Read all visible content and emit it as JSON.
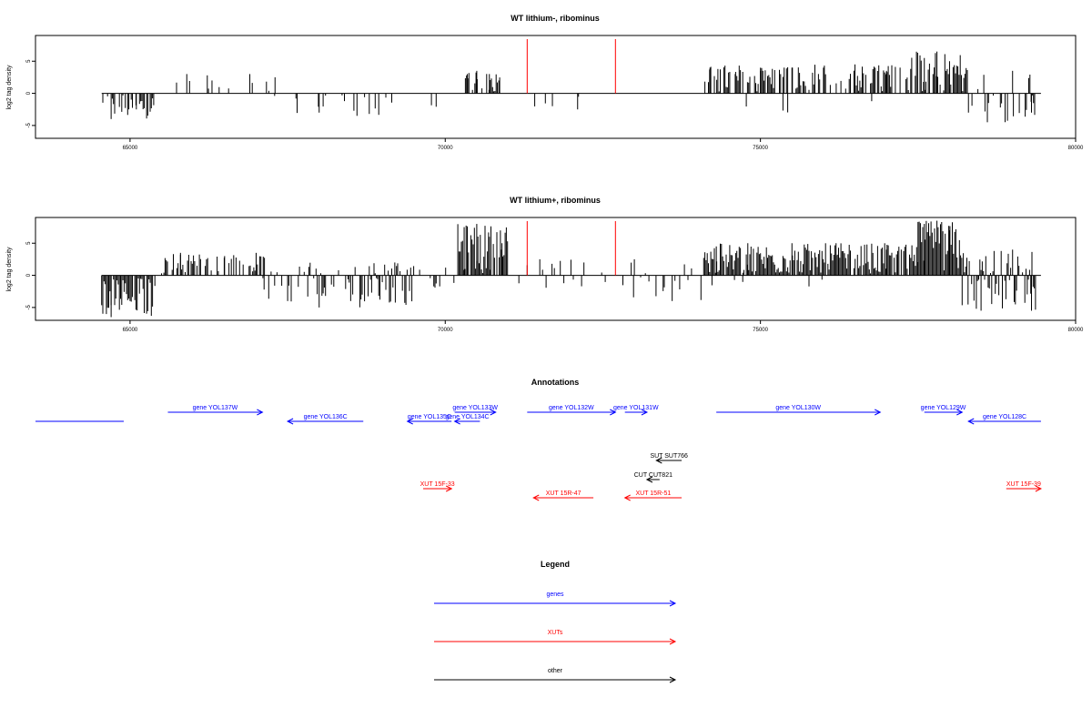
{
  "panels": [
    {
      "title": "WT lithium-, ribominus",
      "ylabel": "log2 tag density",
      "xlim": [
        63500,
        80000
      ],
      "ylim": [
        -7,
        9
      ],
      "yticks": [
        -5,
        0,
        5
      ],
      "xticks": [
        65000,
        70000,
        75000,
        80000
      ],
      "data_start": 64550,
      "data_end": 79450,
      "red_lines": [
        71300,
        72700
      ],
      "segments": [
        {
          "from": 64550,
          "to": 65400,
          "density": 0.55,
          "min": -4,
          "max": 0
        },
        {
          "from": 65700,
          "to": 67300,
          "density": 0.12,
          "min": 0,
          "max": 3
        },
        {
          "from": 67200,
          "to": 69300,
          "density": 0.2,
          "min": -3.5,
          "max": 0
        },
        {
          "from": 69500,
          "to": 70000,
          "density": 0.05,
          "min": -2.5,
          "max": 1.5
        },
        {
          "from": 70300,
          "to": 70900,
          "density": 0.65,
          "min": 0,
          "max": 3.5
        },
        {
          "from": 71400,
          "to": 72300,
          "density": 0.04,
          "min": -2.5,
          "max": 1
        },
        {
          "from": 74100,
          "to": 77400,
          "density": 0.6,
          "min": 0,
          "max": 4.5
        },
        {
          "from": 74100,
          "to": 77400,
          "density": 0.02,
          "min": -3,
          "max": 0
        },
        {
          "from": 77400,
          "to": 78300,
          "density": 0.85,
          "min": 0,
          "max": 6.5
        },
        {
          "from": 78300,
          "to": 79400,
          "density": 0.45,
          "min": -4.5,
          "max": 3.5
        }
      ]
    },
    {
      "title": "WT lithium+, ribominus",
      "ylabel": "log2 tag density",
      "xlim": [
        63500,
        80000
      ],
      "ylim": [
        -7,
        9
      ],
      "yticks": [
        -5,
        0,
        5
      ],
      "xticks": [
        65000,
        70000,
        75000,
        80000
      ],
      "data_start": 64550,
      "data_end": 79450,
      "red_lines": [
        71300,
        72700
      ],
      "segments": [
        {
          "from": 64550,
          "to": 65400,
          "density": 0.95,
          "min": -6.5,
          "max": 0
        },
        {
          "from": 65500,
          "to": 67200,
          "density": 0.55,
          "min": 0,
          "max": 3.5
        },
        {
          "from": 66000,
          "to": 67200,
          "density": 0.08,
          "min": -2.5,
          "max": 0
        },
        {
          "from": 67200,
          "to": 69500,
          "density": 0.55,
          "min": -5,
          "max": 2
        },
        {
          "from": 69500,
          "to": 70200,
          "density": 0.15,
          "min": -2.5,
          "max": 2
        },
        {
          "from": 70200,
          "to": 71000,
          "density": 1.0,
          "min": 0,
          "max": 8
        },
        {
          "from": 71000,
          "to": 72700,
          "density": 0.15,
          "min": -2.5,
          "max": 2.5
        },
        {
          "from": 72800,
          "to": 74100,
          "density": 0.3,
          "min": -4,
          "max": 2.5
        },
        {
          "from": 74100,
          "to": 77500,
          "density": 0.95,
          "min": 0,
          "max": 5
        },
        {
          "from": 74100,
          "to": 77500,
          "density": 0.06,
          "min": -2.5,
          "max": 0
        },
        {
          "from": 77500,
          "to": 78200,
          "density": 1.0,
          "min": 0,
          "max": 8.5
        },
        {
          "from": 78200,
          "to": 79400,
          "density": 0.9,
          "min": -5.5,
          "max": 4
        }
      ]
    }
  ],
  "annotations": {
    "title": "Annotations",
    "items": [
      {
        "label": "",
        "start": 63500,
        "end": 64900,
        "strand": "none",
        "type": "gene",
        "row": 2
      },
      {
        "label": "gene YOL137W",
        "start": 65600,
        "end": 67100,
        "strand": "+",
        "type": "gene",
        "row": 1
      },
      {
        "label": "gene YOL136C",
        "start": 67500,
        "end": 68700,
        "strand": "-",
        "type": "gene",
        "row": 2
      },
      {
        "label": "gene YOL135C",
        "start": 69400,
        "end": 70100,
        "strand": "-",
        "type": "gene",
        "row": 2
      },
      {
        "label": "gene YOL134C",
        "start": 70150,
        "end": 70550,
        "strand": "-",
        "type": "gene",
        "row": 2
      },
      {
        "label": "gene YOL133W",
        "start": 70150,
        "end": 70800,
        "strand": "+",
        "type": "gene",
        "row": 1
      },
      {
        "label": "gene YOL132W",
        "start": 71300,
        "end": 72700,
        "strand": "+",
        "type": "gene",
        "row": 1
      },
      {
        "label": "gene YOL131W",
        "start": 72850,
        "end": 73200,
        "strand": "+",
        "type": "gene",
        "row": 1
      },
      {
        "label": "gene YOL130W",
        "start": 74300,
        "end": 76900,
        "strand": "+",
        "type": "gene",
        "row": 1
      },
      {
        "label": "gene YOL129W",
        "start": 77600,
        "end": 78200,
        "strand": "+",
        "type": "gene",
        "row": 1
      },
      {
        "label": "gene YOL128C",
        "start": 78300,
        "end": 79450,
        "strand": "-",
        "type": "gene",
        "row": 2
      },
      {
        "label": "SUT SUT766",
        "start": 73350,
        "end": 73750,
        "strand": "-",
        "type": "other",
        "row": 3
      },
      {
        "label": "CUT CUT821",
        "start": 73200,
        "end": 73400,
        "strand": "-",
        "type": "other",
        "row": 4
      },
      {
        "label": "XUT 15F-33",
        "start": 69650,
        "end": 70100,
        "strand": "+",
        "type": "xut",
        "row": 5
      },
      {
        "label": "XUT 15R-47",
        "start": 71400,
        "end": 72350,
        "strand": "-",
        "type": "xut",
        "row": 6
      },
      {
        "label": "XUT 15R-51",
        "start": 72850,
        "end": 73750,
        "strand": "-",
        "type": "xut",
        "row": 6
      },
      {
        "label": "XUT 15F-39",
        "start": 78900,
        "end": 79450,
        "strand": "+",
        "type": "xut",
        "row": 5
      }
    ]
  },
  "legend": {
    "title": "Legend",
    "entries": [
      {
        "label": "genes",
        "type": "gene"
      },
      {
        "label": "XUTs",
        "type": "xut"
      },
      {
        "label": "other",
        "type": "other"
      }
    ]
  },
  "colors": {
    "gene": "#0000ff",
    "xut": "#ff0000",
    "other": "#000000",
    "marker": "#ff0000"
  },
  "chart_data": [
    {
      "type": "bar",
      "title": "WT lithium-, ribominus",
      "xlabel": "",
      "ylabel": "log2 tag density",
      "xlim": [
        63500,
        80000
      ],
      "ylim": [
        -7,
        9
      ],
      "grid": false,
      "series": [
        {
          "x": [
            64700,
            65100,
            65900,
            66300,
            66900,
            67300,
            68000,
            68600,
            70350,
            70500,
            70700,
            70850,
            71700,
            72100,
            74200,
            74600,
            75000,
            75500,
            76000,
            76500,
            77000,
            77600,
            77800,
            78000,
            78300,
            78600,
            79000,
            79300
          ],
          "values": [
            -4,
            -2.5,
            3,
            2,
            3,
            2.5,
            -3,
            -3.5,
            3,
            3.5,
            3,
            2,
            -2,
            -2.5,
            4,
            3,
            3.5,
            4,
            4,
            4.5,
            3.5,
            5.5,
            6.5,
            5,
            -3,
            -4.5,
            3.5,
            -3
          ]
        }
      ]
    },
    {
      "type": "bar",
      "title": "WT lithium+, ribominus",
      "xlabel": "",
      "ylabel": "log2 tag density",
      "xlim": [
        63500,
        80000
      ],
      "ylim": [
        -7,
        9
      ],
      "grid": false,
      "series": [
        {
          "x": [
            64700,
            65000,
            65800,
            66500,
            67000,
            67500,
            68000,
            68500,
            69200,
            70300,
            70500,
            70700,
            70900,
            71500,
            72200,
            73000,
            73600,
            74300,
            74800,
            75500,
            76200,
            77000,
            77600,
            77800,
            78000,
            78500,
            79000,
            79300
          ],
          "values": [
            -6.5,
            -4,
            3.5,
            3,
            3.5,
            -4,
            -5,
            -4,
            2,
            7.5,
            8,
            6,
            5,
            2.5,
            2,
            2.5,
            -4,
            4.5,
            5,
            5,
            5,
            4,
            8,
            8.5,
            7,
            -5.5,
            4,
            -5.5
          ]
        }
      ]
    }
  ]
}
